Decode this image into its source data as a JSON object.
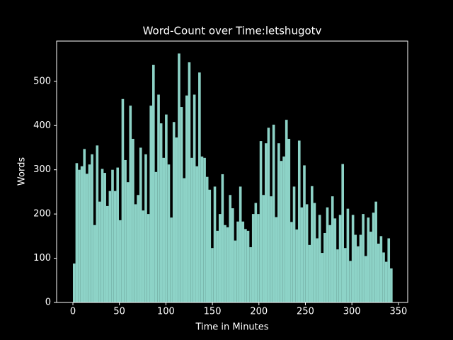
{
  "chart_data": {
    "type": "histogram",
    "title": "Word-Count over Time:letshugotv",
    "xlabel": "Time in Minutes",
    "ylabel": "Words",
    "color": "#8dd3c7",
    "bins": [
      0,
      2.75,
      5.5,
      8.25,
      11,
      13.75,
      16.5,
      19.25,
      22,
      24.75,
      27.5,
      30.25,
      33,
      35.75,
      38.5,
      41.25,
      44,
      46.75,
      49.5,
      52.25,
      55,
      57.75,
      60.5,
      63.25,
      66,
      68.75,
      71.5,
      74.25,
      77,
      79.75,
      82.5,
      85.25,
      88,
      90.75,
      93.5,
      96.25,
      99,
      101.75,
      104.5,
      107.25,
      110,
      112.75,
      115.5,
      118.25,
      121,
      123.75,
      126.5,
      129.25,
      132,
      134.75,
      137.5,
      140.25,
      143,
      145.75,
      148.5,
      151.25,
      154,
      156.75,
      159.5,
      162.25,
      165,
      167.75,
      170.5,
      173.25,
      176,
      178.75,
      181.5,
      184.25,
      187,
      189.75,
      192.5,
      195.25,
      198,
      200.75,
      203.5,
      206.25,
      209,
      211.75,
      214.5,
      217.25,
      220,
      222.75,
      225.5,
      228.25,
      231,
      233.75,
      236.5,
      239.25,
      242,
      244.75,
      247.5,
      250.25,
      253,
      255.75,
      258.5,
      261.25,
      264,
      266.75,
      269.5,
      272.25,
      275,
      277.75,
      280.5,
      283.25,
      286,
      288.75,
      291.5,
      294.25,
      297,
      299.75,
      302.5,
      305.25,
      308,
      310.75,
      313.5,
      316.25,
      319,
      321.75,
      324.5,
      327.25,
      330,
      332.75,
      335.5,
      338.25,
      341,
      343.75
    ],
    "counts": [
      88,
      315,
      300,
      308,
      347,
      291,
      312,
      335,
      175,
      355,
      228,
      302,
      293,
      218,
      252,
      300,
      252,
      305,
      186,
      460,
      322,
      272,
      445,
      370,
      222,
      243,
      350,
      208,
      335,
      200,
      445,
      537,
      295,
      470,
      405,
      327,
      425,
      312,
      192,
      408,
      373,
      563,
      442,
      281,
      468,
      543,
      327,
      470,
      308,
      520,
      330,
      327,
      284,
      255,
      123,
      262,
      162,
      200,
      290,
      175,
      170,
      243,
      213,
      140,
      183,
      262,
      183,
      166,
      162,
      125,
      200,
      225,
      200,
      365,
      243,
      360,
      395,
      240,
      402,
      193,
      360,
      320,
      330,
      413,
      370,
      182,
      262,
      165,
      366,
      215,
      310,
      222,
      130,
      263,
      225,
      145,
      198,
      112,
      157,
      215,
      175,
      240,
      190,
      120,
      198,
      313,
      123,
      212,
      94,
      198,
      153,
      127,
      153,
      200,
      105,
      192,
      160,
      203,
      228,
      133,
      150,
      113,
      92,
      145,
      77
    ],
    "xlim": [
      -17.5,
      360
    ],
    "ylim": [
      0,
      591
    ],
    "xticks": [
      0,
      50,
      100,
      150,
      200,
      250,
      300,
      350
    ],
    "yticks": [
      0,
      100,
      200,
      300,
      400,
      500
    ]
  }
}
